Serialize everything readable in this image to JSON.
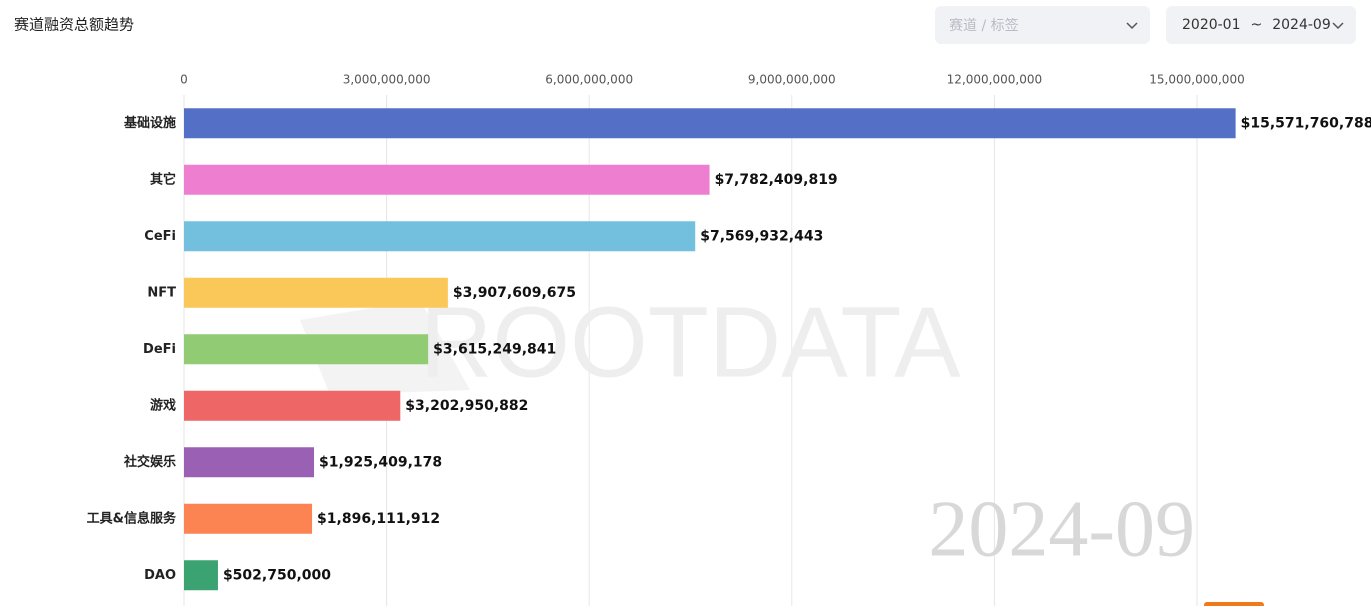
{
  "chart_data": {
    "type": "bar",
    "orientation": "horizontal",
    "title": "赛道融资总额趋势",
    "categories": [
      "基础设施",
      "其它",
      "CeFi",
      "NFT",
      "DeFi",
      "游戏",
      "社交娱乐",
      "工具&信息服务",
      "DAO"
    ],
    "values": [
      15571760788,
      7782409819,
      7569932443,
      3907609675,
      3615249841,
      3202950882,
      1925409178,
      1896111912,
      502750000
    ],
    "value_labels": [
      "$15,571,760,788",
      "$7,782,409,819",
      "$7,569,932,443",
      "$3,907,609,675",
      "$3,615,249,841",
      "$3,202,950,882",
      "$1,925,409,178",
      "$1,896,111,912",
      "$502,750,000"
    ],
    "colors": [
      "#5470c6",
      "#ee7fd0",
      "#73c0de",
      "#fac858",
      "#91cc75",
      "#ee6666",
      "#9a60b4",
      "#fc8452",
      "#3ba272"
    ],
    "xlim": [
      0,
      15000000000
    ],
    "xticks": [
      0,
      {
        "value": 3000000000,
        "label": "3,000,000,000"
      },
      {
        "value": 6000000000,
        "label": "6,000,000,000"
      },
      {
        "value": 9000000000,
        "label": "9,000,000,000"
      },
      {
        "value": 12000000000,
        "label": "12,000,000,000"
      },
      {
        "value": 15000000000,
        "label": "15,000,000,000"
      }
    ],
    "grid": true,
    "watermark": "ROOTDATA",
    "period_label": "2024-09"
  },
  "controls": {
    "filter_placeholder": "赛道 / 标签",
    "date_start": "2020-01",
    "date_separator": "~",
    "date_end": "2024-09"
  }
}
